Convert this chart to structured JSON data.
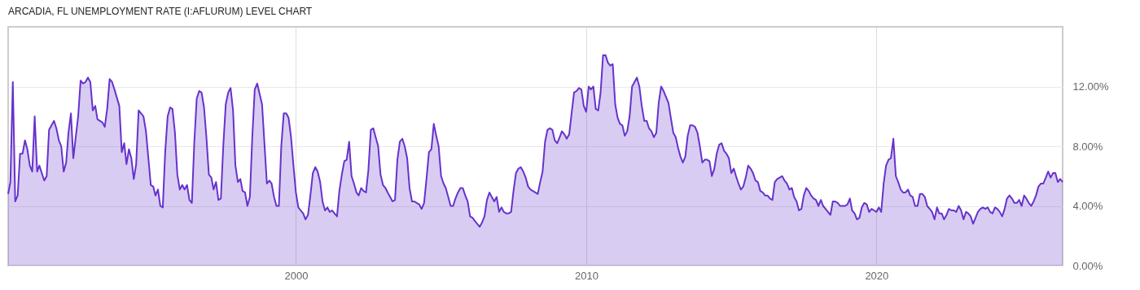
{
  "chart_data": {
    "type": "area",
    "title": "ARCADIA, FL UNEMPLOYMENT RATE (I:AFLURUM) LEVEL CHART",
    "xlim": [
      "1990-02",
      "2026-06"
    ],
    "xticks": [
      "2000",
      "2010",
      "2020"
    ],
    "ylim": [
      0,
      16
    ],
    "yticks": [
      {
        "value": 0,
        "label": "0.00%"
      },
      {
        "value": 4,
        "label": "4.00%"
      },
      {
        "value": 8,
        "label": "8.00%"
      },
      {
        "value": 12,
        "label": "12.00%"
      }
    ],
    "grid": true,
    "series": [
      {
        "color": "#6633cc",
        "x": [
          "1990-02",
          "1990-03",
          "1990-04",
          "1990-05",
          "1990-06",
          "1990-07",
          "1990-08",
          "1990-09",
          "1990-10",
          "1990-11",
          "1990-12",
          "1991-01",
          "1991-02",
          "1991-03",
          "1991-05",
          "1991-06",
          "1991-07",
          "1991-08",
          "1991-09",
          "1991-10",
          "1991-11",
          "1991-12",
          "1992-01",
          "1992-02",
          "1992-03",
          "1992-04",
          "1992-05",
          "1992-07",
          "1992-08",
          "1992-09",
          "1992-10",
          "1992-11",
          "1992-12",
          "1993-01",
          "1993-02",
          "1993-03",
          "1993-05",
          "1993-06",
          "1993-07",
          "1993-08",
          "1993-09",
          "1993-10",
          "1993-12",
          "1994-01",
          "1994-02",
          "1994-03",
          "1994-04",
          "1994-05",
          "1994-06",
          "1994-07",
          "1994-08",
          "1994-09",
          "1994-10",
          "1994-11",
          "1995-01",
          "1995-02",
          "1995-03",
          "1995-04",
          "1995-05",
          "1995-06",
          "1995-07",
          "1995-08",
          "1995-09",
          "1995-10",
          "1995-11",
          "1995-12",
          "1996-01",
          "1996-02",
          "1996-03",
          "1996-04",
          "1996-05",
          "1996-06",
          "1996-07",
          "1996-08",
          "1996-09",
          "1996-10",
          "1996-11",
          "1996-12",
          "1997-01",
          "1997-02",
          "1997-03",
          "1997-04",
          "1997-05",
          "1997-06",
          "1997-07",
          "1997-08",
          "1997-09",
          "1997-10",
          "1997-11",
          "1997-12",
          "1998-01",
          "1998-02",
          "1998-03",
          "1998-04",
          "1998-05",
          "1998-06",
          "1998-07",
          "1998-08",
          "1998-09",
          "1998-11",
          "1998-12",
          "1999-01",
          "1999-02",
          "1999-03",
          "1999-04",
          "1999-05",
          "1999-06",
          "1999-07",
          "1999-08",
          "1999-09",
          "1999-10",
          "1999-11",
          "1999-12",
          "2000-01",
          "2000-02",
          "2000-03",
          "2000-04",
          "2000-05",
          "2000-06",
          "2000-07",
          "2000-08",
          "2000-09",
          "2000-10",
          "2000-11",
          "2000-12",
          "2001-01",
          "2001-02",
          "2001-03",
          "2001-04",
          "2001-06",
          "2001-07",
          "2001-08",
          "2001-09",
          "2001-10",
          "2001-11",
          "2001-12",
          "2002-01",
          "2002-02",
          "2002-03",
          "2002-04",
          "2002-05",
          "2002-06",
          "2002-07",
          "2002-08",
          "2002-09",
          "2002-10",
          "2002-11",
          "2002-12",
          "2003-01",
          "2003-02",
          "2003-03",
          "2003-04",
          "2003-05",
          "2003-06",
          "2003-07",
          "2003-08",
          "2003-09",
          "2003-10",
          "2003-11",
          "2003-12",
          "2004-01",
          "2004-02",
          "2004-03",
          "2004-04",
          "2004-05",
          "2004-06",
          "2004-07",
          "2004-08",
          "2004-09",
          "2004-10",
          "2004-11",
          "2004-12",
          "2005-01",
          "2005-02",
          "2005-03",
          "2005-04",
          "2005-05",
          "2005-06",
          "2005-07",
          "2005-08",
          "2005-09",
          "2005-10",
          "2005-11",
          "2005-12",
          "2006-01",
          "2006-02",
          "2006-03",
          "2006-04",
          "2006-05",
          "2006-06",
          "2006-07",
          "2006-08",
          "2006-09",
          "2006-10",
          "2006-11",
          "2006-12",
          "2007-01",
          "2007-02",
          "2007-03",
          "2007-04",
          "2007-05",
          "2007-06",
          "2007-07",
          "2007-08",
          "2007-09",
          "2007-10",
          "2007-11",
          "2007-12",
          "2008-01",
          "2008-02",
          "2008-03",
          "2008-04",
          "2008-05",
          "2008-06",
          "2008-07",
          "2008-08",
          "2008-09",
          "2008-10",
          "2008-11",
          "2008-12",
          "2009-01",
          "2009-02",
          "2009-03",
          "2009-04",
          "2009-05",
          "2009-06",
          "2009-07",
          "2009-08",
          "2009-09",
          "2009-10",
          "2009-11",
          "2009-12",
          "2010-01",
          "2010-02",
          "2010-03",
          "2010-04",
          "2010-05",
          "2010-06",
          "2010-07",
          "2010-08",
          "2010-09",
          "2010-10",
          "2010-11",
          "2010-12",
          "2011-01",
          "2011-02",
          "2011-03",
          "2011-04",
          "2011-05",
          "2011-06",
          "2011-07",
          "2011-08",
          "2011-09",
          "2011-10",
          "2011-11",
          "2011-12",
          "2012-01",
          "2012-02",
          "2012-03",
          "2012-04",
          "2012-05",
          "2012-06",
          "2012-07",
          "2012-08",
          "2012-09",
          "2012-10",
          "2012-11",
          "2012-12",
          "2013-01",
          "2013-02",
          "2013-03",
          "2013-04",
          "2013-05",
          "2013-06",
          "2013-07",
          "2013-08",
          "2013-09",
          "2013-10",
          "2013-11",
          "2013-12",
          "2014-01",
          "2014-02",
          "2014-03",
          "2014-04",
          "2014-05",
          "2014-06",
          "2014-07",
          "2014-08",
          "2014-09",
          "2014-10",
          "2014-11",
          "2014-12",
          "2015-01",
          "2015-02",
          "2015-03",
          "2015-04",
          "2015-05",
          "2015-06",
          "2015-07",
          "2015-08",
          "2015-09",
          "2015-10",
          "2015-11",
          "2015-12",
          "2016-01",
          "2016-02",
          "2016-03",
          "2016-04",
          "2016-05",
          "2016-06",
          "2016-07",
          "2016-08",
          "2016-09",
          "2016-10",
          "2016-11",
          "2016-12",
          "2017-01",
          "2017-02",
          "2017-03",
          "2017-04",
          "2017-05",
          "2017-06",
          "2017-07",
          "2017-08",
          "2017-09",
          "2017-10",
          "2017-11",
          "2017-12",
          "2018-01",
          "2018-02",
          "2018-03",
          "2018-04",
          "2018-05",
          "2018-06",
          "2018-07",
          "2018-08",
          "2018-09",
          "2018-10",
          "2018-11",
          "2018-12",
          "2019-01",
          "2019-02",
          "2019-03",
          "2019-04",
          "2019-05",
          "2019-06",
          "2019-07",
          "2019-08",
          "2019-09",
          "2019-10",
          "2019-11",
          "2019-12",
          "2020-01",
          "2020-02",
          "2020-03",
          "2020-04",
          "2020-05",
          "2020-06",
          "2020-07",
          "2020-08",
          "2020-09",
          "2020-10",
          "2020-11",
          "2020-12",
          "2021-01",
          "2021-02",
          "2021-03",
          "2021-04",
          "2021-05",
          "2021-06",
          "2021-07",
          "2021-08",
          "2021-09",
          "2021-10",
          "2021-11",
          "2021-12",
          "2022-01",
          "2022-02",
          "2022-03",
          "2022-04",
          "2022-05",
          "2022-06",
          "2022-07",
          "2022-08",
          "2022-09",
          "2022-10",
          "2022-11",
          "2022-12",
          "2023-01",
          "2023-02",
          "2023-03",
          "2023-04",
          "2023-05",
          "2023-06",
          "2023-07",
          "2023-08",
          "2023-09",
          "2023-10",
          "2023-11",
          "2023-12",
          "2024-01",
          "2024-02",
          "2024-03",
          "2024-04",
          "2024-05",
          "2024-06",
          "2024-07",
          "2024-08",
          "2024-09",
          "2024-10",
          "2024-11",
          "2024-12",
          "2025-01",
          "2025-02",
          "2025-03",
          "2025-04",
          "2025-05",
          "2025-06",
          "2025-07",
          "2025-08",
          "2025-09",
          "2025-10",
          "2025-11",
          "2025-12",
          "2026-01",
          "2026-02",
          "2026-03",
          "2026-04",
          "2026-05",
          "2026-06"
        ],
        "values": [
          4.8,
          5.6,
          12.3,
          4.3,
          4.7,
          7.5,
          7.5,
          8.4,
          7.8,
          6.7,
          6.3,
          10.0,
          6.3,
          6.7,
          5.7,
          6.0,
          9.1,
          9.4,
          9.7,
          9.2,
          8.4,
          8.0,
          6.3,
          6.9,
          8.9,
          10.2,
          7.2,
          10.0,
          12.4,
          12.2,
          12.3,
          12.6,
          12.3,
          10.4,
          10.7,
          9.8,
          9.6,
          9.3,
          10.5,
          12.5,
          12.3,
          11.8,
          10.7,
          7.6,
          8.2,
          6.8,
          7.8,
          7.2,
          5.8,
          6.8,
          10.4,
          10.2,
          10.0,
          9.0,
          5.4,
          5.3,
          4.7,
          5.1,
          4.0,
          3.9,
          7.6,
          10.0,
          10.6,
          10.5,
          8.9,
          6.1,
          5.1,
          5.4,
          5.1,
          5.4,
          4.4,
          4.2,
          8.2,
          11.2,
          11.7,
          11.6,
          10.6,
          8.6,
          6.1,
          5.9,
          5.1,
          5.6,
          4.4,
          4.5,
          8.0,
          10.8,
          11.6,
          11.9,
          10.4,
          6.7,
          5.6,
          5.8,
          5.0,
          4.9,
          4.0,
          4.6,
          8.6,
          11.8,
          12.2,
          10.8,
          8.2,
          5.5,
          5.7,
          5.5,
          4.6,
          4.0,
          4.0,
          8.0,
          10.2,
          10.2,
          9.9,
          8.6,
          6.7,
          4.9,
          3.9,
          3.7,
          3.5,
          3.1,
          3.4,
          4.7,
          6.2,
          6.6,
          6.3,
          5.6,
          4.3,
          3.7,
          3.9,
          3.6,
          3.7,
          3.3,
          5.0,
          6.1,
          7.0,
          7.1,
          8.3,
          6.0,
          5.5,
          4.9,
          4.7,
          5.2,
          5.0,
          4.9,
          6.4,
          9.1,
          9.2,
          8.6,
          8.0,
          6.1,
          5.4,
          5.2,
          4.9,
          4.6,
          4.3,
          4.4,
          7.1,
          8.3,
          8.5,
          8.0,
          7.2,
          5.2,
          4.3,
          4.3,
          4.2,
          4.1,
          3.8,
          4.2,
          5.8,
          7.6,
          7.8,
          9.5,
          8.7,
          8.0,
          6.0,
          5.5,
          5.2,
          4.6,
          4.0,
          4.0,
          4.5,
          4.9,
          5.2,
          5.2,
          4.7,
          4.3,
          3.3,
          3.2,
          3.0,
          2.8,
          2.6,
          2.9,
          3.3,
          4.4,
          4.9,
          4.6,
          4.3,
          4.6,
          3.6,
          3.9,
          3.6,
          3.5,
          3.5,
          3.6,
          5.0,
          6.2,
          6.5,
          6.6,
          6.3,
          5.9,
          5.3,
          5.1,
          5.0,
          4.9,
          4.8,
          5.6,
          6.3,
          8.3,
          9.1,
          9.2,
          9.1,
          8.4,
          8.2,
          8.6,
          9.0,
          8.8,
          8.5,
          8.8,
          10.2,
          11.6,
          11.7,
          11.9,
          11.8,
          10.7,
          10.3,
          12.0,
          11.8,
          12.0,
          10.5,
          10.4,
          11.6,
          14.1,
          14.1,
          13.6,
          13.4,
          13.5,
          10.8,
          9.9,
          9.5,
          9.4,
          8.7,
          9.0,
          10.0,
          12.0,
          12.3,
          12.6,
          12.0,
          10.7,
          9.7,
          9.7,
          9.2,
          9.0,
          8.6,
          8.9,
          10.9,
          12.0,
          11.7,
          11.3,
          10.9,
          9.9,
          8.9,
          8.6,
          7.9,
          7.3,
          6.9,
          7.3,
          8.7,
          9.4,
          9.4,
          9.3,
          8.9,
          8.0,
          6.9,
          7.1,
          7.1,
          7.0,
          6.0,
          6.5,
          7.5,
          8.1,
          8.2,
          7.7,
          7.5,
          7.2,
          6.2,
          6.5,
          6.0,
          5.5,
          5.1,
          5.3,
          5.9,
          6.7,
          6.5,
          6.2,
          5.7,
          5.6,
          5.0,
          4.9,
          4.7,
          4.7,
          4.5,
          4.4,
          5.6,
          5.8,
          5.9,
          6.0,
          5.7,
          5.5,
          5.1,
          5.2,
          4.6,
          4.3,
          3.7,
          3.8,
          4.7,
          5.2,
          5.0,
          4.7,
          4.5,
          4.4,
          4.0,
          4.4,
          4.0,
          3.8,
          3.6,
          3.4,
          4.3,
          4.3,
          4.2,
          4.0,
          4.0,
          4.0,
          4.1,
          4.5,
          3.7,
          3.5,
          3.1,
          3.2,
          3.9,
          4.2,
          4.1,
          3.6,
          3.8,
          3.7,
          3.6,
          3.9,
          3.6,
          5.5,
          6.7,
          7.1,
          7.2,
          8.5,
          6.0,
          5.6,
          5.1,
          4.9,
          4.9,
          5.1,
          4.7,
          4.6,
          4.0,
          4.0,
          4.8,
          4.8,
          4.6,
          4.0,
          3.8,
          3.6,
          3.1,
          3.9,
          3.5,
          3.5,
          3.1,
          3.4,
          3.8,
          3.7,
          3.7,
          3.6,
          4.0,
          3.7,
          3.1,
          3.6,
          3.5,
          3.3,
          2.8,
          3.2,
          3.6,
          3.8,
          3.9,
          3.8,
          3.9,
          3.6,
          3.5,
          3.9,
          3.8,
          3.6,
          3.3,
          3.8,
          4.5,
          4.7,
          4.5,
          4.2,
          4.2,
          4.4,
          4.0,
          4.7,
          4.5,
          4.2,
          4.0,
          4.3,
          4.7,
          5.3,
          5.5,
          5.5,
          5.9,
          6.3,
          5.9,
          6.2,
          6.2,
          5.6,
          5.8,
          5.6
        ]
      }
    ]
  }
}
